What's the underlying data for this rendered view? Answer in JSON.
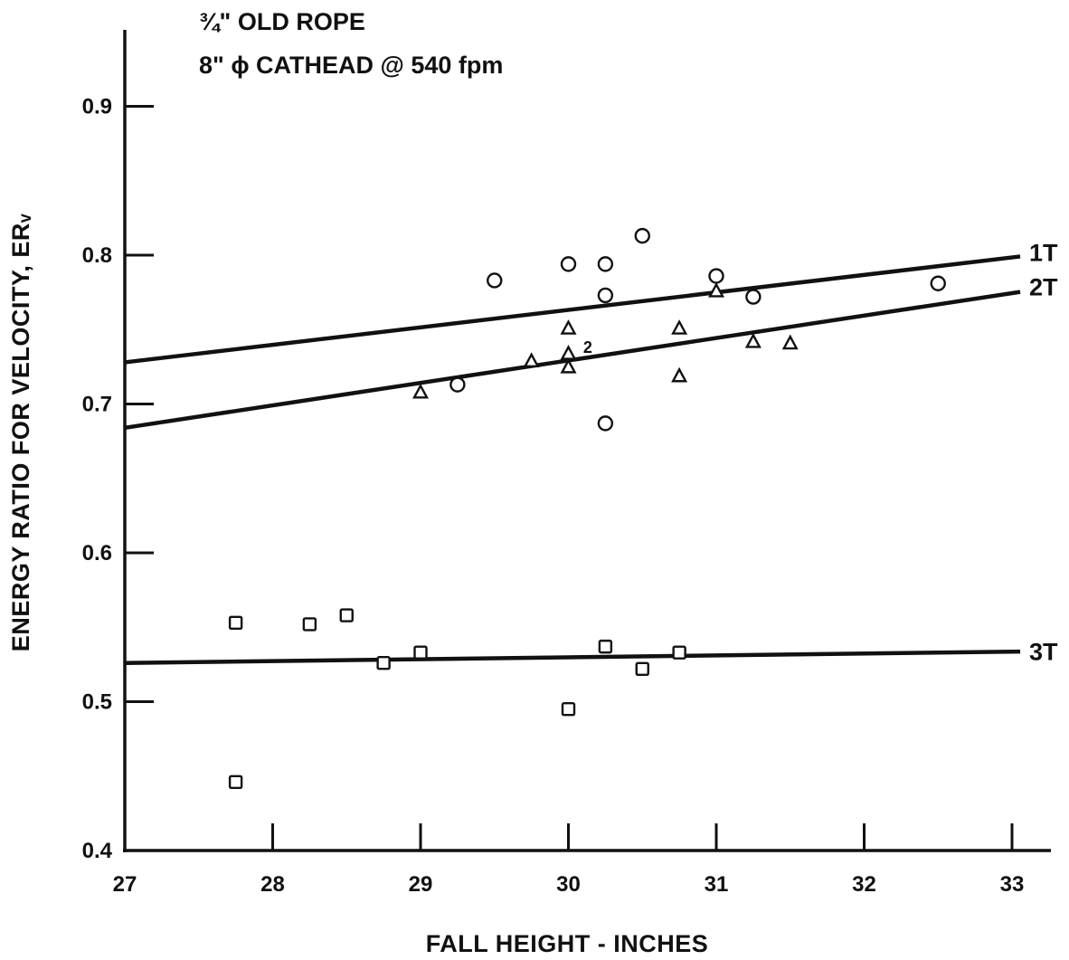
{
  "chart_data": {
    "type": "scatter",
    "title_lines": [
      "¾\" OLD ROPE",
      "8\" ϕ CATHEAD @ 540 fpm"
    ],
    "xlabel": "FALL HEIGHT - INCHES",
    "ylabel": "ENERGY RATIO FOR VELOCITY, ERᵥ",
    "xlim": [
      27,
      33.3
    ],
    "ylim": [
      0.4,
      0.95
    ],
    "x_ticks": [
      27,
      28,
      29,
      30,
      31,
      32,
      33
    ],
    "y_ticks": [
      0.4,
      0.5,
      0.6,
      0.7,
      0.8,
      0.9
    ],
    "x_tick_labels": [
      "27",
      "28",
      "29",
      "30",
      "31",
      "32",
      "33"
    ],
    "y_tick_labels": [
      "0.4",
      "0.5",
      "0.6",
      "0.7",
      "0.8",
      "0.9"
    ],
    "grid": false,
    "legend": "none",
    "series": [
      {
        "name": "1T",
        "marker": "circle",
        "points": [
          [
            29.25,
            0.713
          ],
          [
            29.5,
            0.783
          ],
          [
            30.0,
            0.794
          ],
          [
            30.25,
            0.794
          ],
          [
            30.25,
            0.773
          ],
          [
            30.25,
            0.687
          ],
          [
            30.5,
            0.813
          ],
          [
            31.0,
            0.786
          ],
          [
            31.25,
            0.772
          ],
          [
            32.5,
            0.781
          ]
        ],
        "fit": [
          [
            27,
            0.728
          ],
          [
            33.3,
            0.802
          ]
        ]
      },
      {
        "name": "2T",
        "marker": "triangle",
        "points": [
          [
            29.0,
            0.708
          ],
          [
            29.75,
            0.729
          ],
          [
            30.0,
            0.751
          ],
          [
            30.0,
            0.734
          ],
          [
            30.0,
            0.725
          ],
          [
            30.75,
            0.751
          ],
          [
            30.75,
            0.719
          ],
          [
            31.0,
            0.776
          ],
          [
            31.25,
            0.742
          ],
          [
            31.5,
            0.741
          ]
        ],
        "fit": [
          [
            27,
            0.684
          ],
          [
            33.3,
            0.779
          ]
        ]
      },
      {
        "name": "3T",
        "marker": "square",
        "points": [
          [
            27.75,
            0.553
          ],
          [
            27.75,
            0.446
          ],
          [
            28.25,
            0.552
          ],
          [
            28.5,
            0.558
          ],
          [
            28.75,
            0.526
          ],
          [
            29.0,
            0.533
          ],
          [
            30.0,
            0.495
          ],
          [
            30.25,
            0.537
          ],
          [
            30.5,
            0.522
          ],
          [
            30.75,
            0.533
          ]
        ],
        "fit": [
          [
            27,
            0.526
          ],
          [
            33.3,
            0.534
          ]
        ]
      }
    ],
    "annotations": [
      {
        "text": "2",
        "x": 30.1,
        "y": 0.738
      }
    ]
  },
  "colors": {
    "ink": "#111111",
    "background": "#ffffff"
  }
}
